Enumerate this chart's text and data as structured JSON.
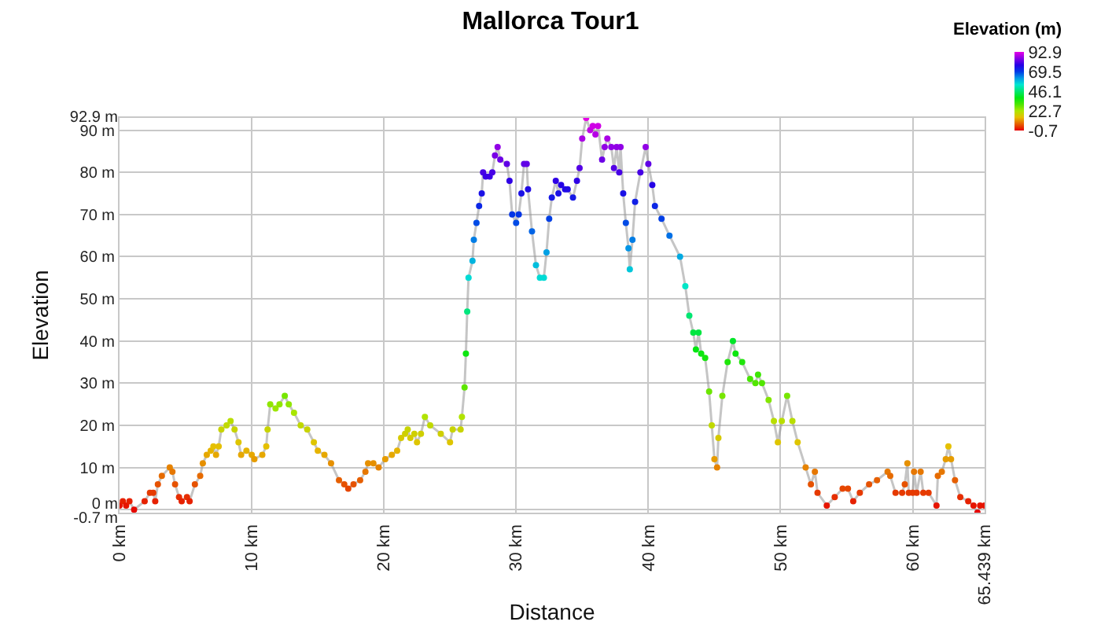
{
  "chart_data": {
    "type": "line",
    "title": "Mallorca Tour1",
    "xlabel": "Distance",
    "ylabel": "Elevation",
    "clabel": "Elevation (m)",
    "clim": [
      -0.7,
      92.9
    ],
    "cticks": [
      92.9,
      69.5,
      46.1,
      22.7,
      -0.7
    ],
    "xlim": [
      0,
      65.439
    ],
    "xticks": [
      {
        "value": 0,
        "label": "0 km"
      },
      {
        "value": 10,
        "label": "10 km"
      },
      {
        "value": 20,
        "label": "20 km"
      },
      {
        "value": 30,
        "label": "30 km"
      },
      {
        "value": 40,
        "label": "40 km"
      },
      {
        "value": 50,
        "label": "50 km"
      },
      {
        "value": 60,
        "label": "60 km"
      },
      {
        "value": 65.439,
        "label": "65.439 km"
      }
    ],
    "ylim": [
      -0.7,
      92.9
    ],
    "yticks": [
      {
        "value": -0.7,
        "label": "-0.7 m"
      },
      {
        "value": 0,
        "label": "0 m"
      },
      {
        "value": 10,
        "label": "10 m"
      },
      {
        "value": 20,
        "label": "20 m"
      },
      {
        "value": 30,
        "label": "30 m"
      },
      {
        "value": 40,
        "label": "40 m"
      },
      {
        "value": 50,
        "label": "50 m"
      },
      {
        "value": 60,
        "label": "60 m"
      },
      {
        "value": 70,
        "label": "70 m"
      },
      {
        "value": 80,
        "label": "80 m"
      },
      {
        "value": 90,
        "label": "90 m"
      },
      {
        "value": 92.9,
        "label": "92.9 m"
      }
    ],
    "grid": true,
    "marker": "circle",
    "x": [
      0,
      0.25,
      0.5,
      0.75,
      1.1,
      1.9,
      2.3,
      2.55,
      2.7,
      2.9,
      3.2,
      3.8,
      4.0,
      4.2,
      4.5,
      4.7,
      5.1,
      5.3,
      5.7,
      6.1,
      6.3,
      6.6,
      6.9,
      7.1,
      7.3,
      7.5,
      7.7,
      8.1,
      8.4,
      8.7,
      9.0,
      9.2,
      9.6,
      10.0,
      10.2,
      10.8,
      11.1,
      11.2,
      11.4,
      11.8,
      12.1,
      12.5,
      12.8,
      13.2,
      13.7,
      14.2,
      14.7,
      15.0,
      15.5,
      16.0,
      16.6,
      17.0,
      17.3,
      17.7,
      18.2,
      18.6,
      18.8,
      19.2,
      19.6,
      20.1,
      20.6,
      21.0,
      21.3,
      21.6,
      21.8,
      22.0,
      22.3,
      22.5,
      22.8,
      23.1,
      23.5,
      24.3,
      25.0,
      25.2,
      25.8,
      25.9,
      26.1,
      26.2,
      26.3,
      26.4,
      26.7,
      26.8,
      27.0,
      27.2,
      27.4,
      27.5,
      27.7,
      28.0,
      28.2,
      28.4,
      28.6,
      28.8,
      29.3,
      29.5,
      29.7,
      30.0,
      30.2,
      30.4,
      30.6,
      30.8,
      30.9,
      31.2,
      31.5,
      31.8,
      32.1,
      32.3,
      32.5,
      32.7,
      33.0,
      33.2,
      33.4,
      33.7,
      33.9,
      34.3,
      34.6,
      34.8,
      35.0,
      35.3,
      35.6,
      35.8,
      36.0,
      36.2,
      36.5,
      36.7,
      36.9,
      37.2,
      37.4,
      37.6,
      37.8,
      37.9,
      38.1,
      38.3,
      38.5,
      38.6,
      38.8,
      39.0,
      39.4,
      39.8,
      40.0,
      40.3,
      40.5,
      41.0,
      41.6,
      42.4,
      42.8,
      43.1,
      43.4,
      43.6,
      43.8,
      44.0,
      44.3,
      44.6,
      44.8,
      45.0,
      45.2,
      45.3,
      45.6,
      46.0,
      46.4,
      46.6,
      47.1,
      47.7,
      48.1,
      48.3,
      48.6,
      49.1,
      49.5,
      49.8,
      50.1,
      50.5,
      50.9,
      51.3,
      51.9,
      52.3,
      52.6,
      52.8,
      53.5,
      54.1,
      54.7,
      55.1,
      55.5,
      56.0,
      56.7,
      57.3,
      58.1,
      58.3,
      58.7,
      59.2,
      59.4,
      59.6,
      59.7,
      60.0,
      60.1,
      60.3,
      60.6,
      60.8,
      61.2,
      61.8,
      61.9,
      62.2,
      62.5,
      62.7,
      62.9,
      63.2,
      63.6,
      64.2,
      64.6,
      64.9,
      65.1,
      65.439
    ],
    "values": [
      1,
      2,
      1,
      2,
      0,
      2,
      4,
      4,
      2,
      6,
      8,
      10,
      9,
      6,
      3,
      2,
      3,
      2,
      6,
      8,
      11,
      13,
      14,
      15,
      13,
      15,
      19,
      20,
      21,
      19,
      16,
      13,
      14,
      13,
      12,
      13,
      15,
      19,
      25,
      24,
      25,
      27,
      25,
      23,
      20,
      19,
      16,
      14,
      13,
      11,
      7,
      6,
      5,
      6,
      7,
      9,
      11,
      11,
      10,
      12,
      13,
      14,
      17,
      18,
      19,
      17,
      18,
      16,
      18,
      22,
      20,
      18,
      16,
      19,
      19,
      22,
      29,
      37,
      47,
      55,
      59,
      64,
      68,
      72,
      75,
      80,
      79,
      79,
      80,
      84,
      86,
      83,
      82,
      78,
      70,
      68,
      70,
      75,
      82,
      82,
      76,
      66,
      58,
      55,
      55,
      61,
      69,
      74,
      78,
      75,
      77,
      76,
      76,
      74,
      78,
      81,
      88,
      92.9,
      90,
      91,
      89,
      91,
      83,
      86,
      88,
      86,
      81,
      86,
      80,
      86,
      75,
      68,
      62,
      57,
      64,
      73,
      80,
      86,
      82,
      77,
      72,
      69,
      65,
      60,
      53,
      46,
      42,
      38,
      42,
      37,
      36,
      28,
      20,
      12,
      10,
      17,
      27,
      35,
      40,
      37,
      35,
      31,
      30,
      32,
      30,
      26,
      21,
      16,
      21,
      27,
      21,
      16,
      10,
      6,
      9,
      4,
      1,
      3,
      5,
      5,
      2,
      4,
      6,
      7,
      9,
      8,
      4,
      4,
      6,
      11,
      4,
      4,
      9,
      4,
      9,
      4,
      4,
      1,
      8,
      9,
      12,
      15,
      12,
      7,
      3,
      2,
      1,
      -0.7,
      1,
      1
    ]
  }
}
